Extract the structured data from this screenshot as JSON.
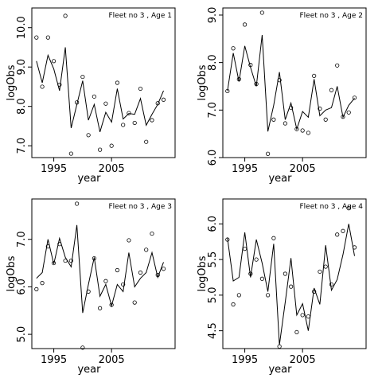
{
  "chart_data": [
    {
      "type": "scatter",
      "title": "Fleet no 3 , Age 1",
      "xlabel": "year",
      "ylabel": "logObs",
      "xlim": [
        1991.2,
        2016
      ],
      "ylim": [
        6.7,
        10.5
      ],
      "xticks": [
        1995,
        2005
      ],
      "xtick_labels": [
        "1995",
        "2005"
      ],
      "yticks": [
        7.0,
        8.0,
        9.0,
        10.0
      ],
      "ytick_labels": [
        "7.0",
        "8.0",
        "9.0",
        "10.0"
      ],
      "grid": false,
      "observed": {
        "x": [
          1992,
          1993,
          1994,
          1995,
          1996,
          1997,
          1998,
          1999,
          2000,
          2001,
          2002,
          2003,
          2004,
          2005,
          2006,
          2007,
          2008,
          2009,
          2010,
          2011,
          2012,
          2013,
          2014
        ],
        "y": [
          9.75,
          8.5,
          9.75,
          9.15,
          8.55,
          10.3,
          6.8,
          8.1,
          8.75,
          7.27,
          8.25,
          6.9,
          8.07,
          7.0,
          8.6,
          7.53,
          7.83,
          7.58,
          8.45,
          7.1,
          7.65,
          8.08,
          8.17
        ]
      },
      "fitted": {
        "x": [
          1992,
          1993,
          1994,
          1995,
          1996,
          1997,
          1998,
          1999,
          2000,
          2001,
          2002,
          2003,
          2004,
          2005,
          2006,
          2007,
          2008,
          2009,
          2010,
          2011,
          2012,
          2013,
          2014
        ],
        "y": [
          9.15,
          8.6,
          9.3,
          8.95,
          8.4,
          9.5,
          7.45,
          8.05,
          8.65,
          7.65,
          8.05,
          7.35,
          7.85,
          7.6,
          8.45,
          7.68,
          7.82,
          7.8,
          8.2,
          7.52,
          7.8,
          8.05,
          8.4
        ]
      }
    },
    {
      "type": "scatter",
      "title": "Fleet no 3 , Age 2",
      "xlabel": "year",
      "ylabel": "logObs",
      "xlim": [
        1991.2,
        2016
      ],
      "ylim": [
        6.0,
        9.15
      ],
      "xticks": [
        1995,
        2005
      ],
      "xtick_labels": [
        "1995",
        "2005"
      ],
      "yticks": [
        6.0,
        7.0,
        8.0,
        9.0
      ],
      "ytick_labels": [
        "6.0",
        "7.0",
        "8.0",
        "9.0"
      ],
      "grid": false,
      "observed": {
        "x": [
          1992,
          1993,
          1994,
          1995,
          1996,
          1997,
          1998,
          1999,
          2000,
          2001,
          2002,
          2003,
          2004,
          2005,
          2006,
          2007,
          2008,
          2009,
          2010,
          2011,
          2012,
          2013,
          2014
        ],
        "y": [
          7.4,
          8.3,
          7.65,
          8.8,
          7.95,
          7.55,
          9.05,
          6.08,
          6.8,
          7.63,
          6.72,
          7.05,
          6.6,
          6.57,
          6.52,
          7.72,
          7.03,
          6.8,
          7.42,
          7.94,
          6.86,
          6.95,
          7.26
        ]
      },
      "fitted": {
        "x": [
          1992,
          1993,
          1994,
          1995,
          1996,
          1997,
          1998,
          1999,
          2000,
          2001,
          2002,
          2003,
          2004,
          2005,
          2006,
          2007,
          2008,
          2009,
          2010,
          2011,
          2012,
          2013,
          2014
        ],
        "y": [
          7.4,
          8.2,
          7.6,
          8.35,
          7.9,
          7.5,
          8.58,
          6.55,
          7.1,
          7.8,
          6.8,
          7.15,
          6.6,
          6.97,
          6.85,
          7.65,
          6.88,
          7.0,
          7.05,
          7.5,
          6.85,
          7.1,
          7.25
        ]
      }
    },
    {
      "type": "scatter",
      "title": "Fleet no 3 , Age 3",
      "xlabel": "year",
      "ylabel": "logObs",
      "xlim": [
        1991.2,
        2016
      ],
      "ylim": [
        4.7,
        7.85
      ],
      "xticks": [
        1995,
        2005
      ],
      "xtick_labels": [
        "1995",
        "2005"
      ],
      "yticks": [
        5.0,
        6.0,
        7.0
      ],
      "ytick_labels": [
        "5.0",
        "6.0",
        "7.0"
      ],
      "grid": false,
      "observed": {
        "x": [
          1992,
          1993,
          1994,
          1995,
          1996,
          1997,
          1998,
          1999,
          2000,
          2001,
          2002,
          2003,
          2004,
          2005,
          2006,
          2007,
          2008,
          2009,
          2010,
          2011,
          2012,
          2013,
          2014
        ],
        "y": [
          5.95,
          6.08,
          6.85,
          6.5,
          6.9,
          6.55,
          6.55,
          7.75,
          4.72,
          5.9,
          6.6,
          5.55,
          6.12,
          5.62,
          6.35,
          6.05,
          6.98,
          5.67,
          6.3,
          6.78,
          7.12,
          6.25,
          6.38
        ]
      },
      "fitted": {
        "x": [
          1992,
          1993,
          1994,
          1995,
          1996,
          1997,
          1998,
          1999,
          2000,
          2001,
          2002,
          2003,
          2004,
          2005,
          2006,
          2007,
          2008,
          2009,
          2010,
          2011,
          2012,
          2013,
          2014
        ],
        "y": [
          6.18,
          6.3,
          7.0,
          6.48,
          7.02,
          6.62,
          6.42,
          7.3,
          5.45,
          6.05,
          6.62,
          5.8,
          6.05,
          5.6,
          6.05,
          5.9,
          6.72,
          6.0,
          6.18,
          6.3,
          6.72,
          6.2,
          6.52
        ]
      }
    },
    {
      "type": "scatter",
      "title": "Fleet no 3 , Age 4",
      "xlabel": "year",
      "ylabel": "logObs",
      "xlim": [
        1991.2,
        2016
      ],
      "ylim": [
        4.25,
        6.35
      ],
      "xticks": [
        1995,
        2005
      ],
      "xtick_labels": [
        "1995",
        "2005"
      ],
      "yticks": [
        4.5,
        5.0,
        5.5,
        6.0
      ],
      "ytick_labels": [
        "4.5",
        "5.0",
        "5.5",
        "6.0"
      ],
      "grid": false,
      "observed": {
        "x": [
          1992,
          1993,
          1994,
          1995,
          1996,
          1997,
          1998,
          1999,
          2000,
          2001,
          2002,
          2003,
          2004,
          2005,
          2006,
          2007,
          2008,
          2009,
          2010,
          2011,
          2012,
          2013,
          2014
        ],
        "y": [
          5.78,
          4.87,
          5.0,
          5.65,
          5.3,
          5.5,
          5.23,
          5.0,
          5.8,
          4.28,
          5.3,
          5.12,
          4.48,
          4.72,
          4.7,
          5.05,
          5.33,
          5.4,
          5.15,
          5.85,
          5.9,
          6.22,
          5.67
        ]
      },
      "fitted": {
        "x": [
          1992,
          1993,
          1994,
          1995,
          1996,
          1997,
          1998,
          1999,
          2000,
          2001,
          2002,
          2003,
          2004,
          2005,
          2006,
          2007,
          2008,
          2009,
          2010,
          2011,
          2012,
          2013,
          2014
        ],
        "y": [
          5.8,
          5.2,
          5.25,
          5.88,
          5.25,
          5.78,
          5.45,
          5.05,
          5.72,
          4.3,
          4.9,
          5.52,
          4.72,
          4.88,
          4.5,
          5.1,
          4.87,
          5.7,
          5.07,
          5.22,
          5.57,
          6.0,
          5.55
        ]
      }
    }
  ]
}
